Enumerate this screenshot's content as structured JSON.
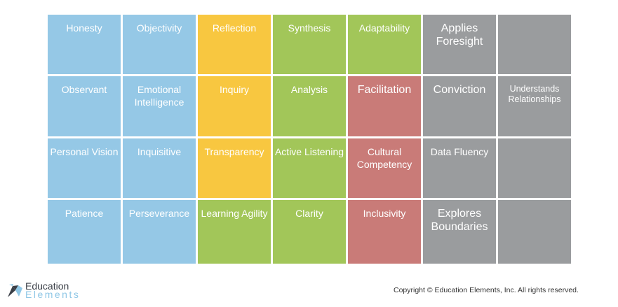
{
  "grid": {
    "cells": [
      {
        "label": "Honesty",
        "color": "blue",
        "size": "md"
      },
      {
        "label": "Objectivity",
        "color": "blue",
        "size": "md"
      },
      {
        "label": "Reflection",
        "color": "yellow",
        "size": "md"
      },
      {
        "label": "Synthesis",
        "color": "green",
        "size": "md"
      },
      {
        "label": "Adaptability",
        "color": "green",
        "size": "md"
      },
      {
        "label": "Applies Foresight",
        "color": "gray",
        "size": "lg"
      },
      {
        "label": "",
        "color": "gray",
        "size": "md"
      },
      {
        "label": "Observant",
        "color": "blue",
        "size": "md"
      },
      {
        "label": "Emotional Intelligence",
        "color": "blue",
        "size": "md"
      },
      {
        "label": "Inquiry",
        "color": "yellow",
        "size": "md"
      },
      {
        "label": "Analysis",
        "color": "green",
        "size": "md"
      },
      {
        "label": "Facilitation",
        "color": "red",
        "size": "lg"
      },
      {
        "label": "Conviction",
        "color": "gray",
        "size": "lg"
      },
      {
        "label": "Understands Relationships",
        "color": "gray",
        "size": "sm"
      },
      {
        "label": "Personal Vision",
        "color": "blue",
        "size": "md"
      },
      {
        "label": "Inquisitive",
        "color": "blue",
        "size": "md"
      },
      {
        "label": "Transparency",
        "color": "yellow",
        "size": "md"
      },
      {
        "label": "Active Listening",
        "color": "green",
        "size": "md"
      },
      {
        "label": "Cultural Competency",
        "color": "red",
        "size": "md"
      },
      {
        "label": "Data Fluency",
        "color": "gray",
        "size": "md"
      },
      {
        "label": "",
        "color": "gray",
        "size": "md"
      },
      {
        "label": "Patience",
        "color": "blue",
        "size": "md"
      },
      {
        "label": "Perseverance",
        "color": "blue",
        "size": "md"
      },
      {
        "label": "Learning Agility",
        "color": "green",
        "size": "md"
      },
      {
        "label": "Clarity",
        "color": "green",
        "size": "md"
      },
      {
        "label": "Inclusivity",
        "color": "red",
        "size": "md"
      },
      {
        "label": "Explores Boundaries",
        "color": "gray",
        "size": "lg"
      },
      {
        "label": "",
        "color": "gray",
        "size": "md"
      }
    ]
  },
  "colors": {
    "blue": "#95c8e6",
    "yellow": "#f8c740",
    "green": "#a2c659",
    "red": "#c97b78",
    "gray": "#9a9c9e"
  },
  "footer": {
    "logo_line1": "Education",
    "logo_line2": "Elements",
    "logo_icon": "education-elements-logo-icon",
    "copyright": "Copyright © Education Elements, Inc. All rights reserved."
  }
}
